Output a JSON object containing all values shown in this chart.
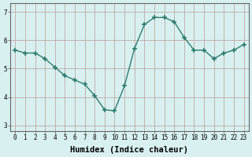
{
  "x": [
    0,
    1,
    2,
    3,
    4,
    5,
    6,
    7,
    8,
    9,
    10,
    11,
    12,
    13,
    14,
    15,
    16,
    17,
    18,
    19,
    20,
    21,
    22,
    23
  ],
  "y": [
    5.65,
    5.55,
    5.55,
    5.35,
    5.05,
    4.75,
    4.6,
    4.45,
    4.05,
    3.55,
    3.52,
    4.4,
    5.7,
    6.55,
    6.8,
    6.8,
    6.65,
    6.1,
    5.65,
    5.65,
    5.35,
    5.55,
    5.65,
    5.85
  ],
  "line_color": "#2e7d6e",
  "marker": "+",
  "marker_size": 4,
  "line_width": 1.0,
  "bg_color": "#d8f0f0",
  "grid_color": "#c0a8a8",
  "xlabel": "Humidex (Indice chaleur)",
  "ylim": [
    2.8,
    7.3
  ],
  "xlim": [
    -0.5,
    23.5
  ],
  "yticks": [
    3,
    4,
    5,
    6,
    7
  ],
  "xtick_labels": [
    "0",
    "1",
    "2",
    "3",
    "4",
    "5",
    "6",
    "7",
    "8",
    "9",
    "10",
    "11",
    "12",
    "13",
    "14",
    "15",
    "16",
    "17",
    "18",
    "19",
    "20",
    "21",
    "22",
    "23"
  ],
  "tick_fontsize": 5.5,
  "xlabel_fontsize": 7.5
}
